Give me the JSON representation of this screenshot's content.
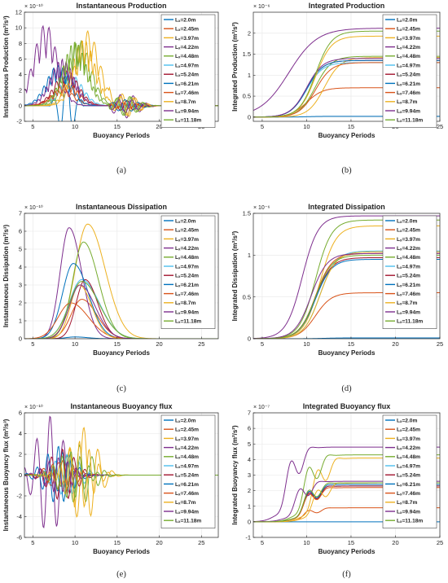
{
  "legend_labels": [
    "Lₓ=2.0m",
    "Lₓ=2.45m",
    "Lₓ=3.97m",
    "Lₓ=4.22m",
    "Lₓ=4.48m",
    "Lₓ=4.97m",
    "Lₓ=5.24m",
    "Lₓ=6.21m",
    "Lₓ=7.46m",
    "Lₓ=8.7m",
    "Lₓ=9.94m",
    "Lₓ=11.18m"
  ],
  "series_colors": [
    "#0072BD",
    "#D95319",
    "#EDB120",
    "#7E2F8E",
    "#77AC30",
    "#4DBEEE",
    "#A2142F",
    "#0072BD",
    "#D95319",
    "#EDB120",
    "#7E2F8E",
    "#77AC30"
  ],
  "chart_data": [
    {
      "type": "line",
      "label": "(a)",
      "title": "Instantaneous Production",
      "xlabel": "Buoyancy Periods",
      "ylabel": "Instantaneous Production (m²/s³)",
      "exponent": "× 10⁻¹⁰",
      "xlim": [
        4,
        27
      ],
      "ylim": [
        -2,
        12
      ],
      "xticks": [
        5,
        10,
        15,
        20,
        25
      ],
      "yticks": [
        -2,
        0,
        2,
        4,
        6,
        8,
        10,
        12
      ],
      "grid": true,
      "series_kind": "spiky",
      "peaks": [
        [
          9.0,
          4.3
        ],
        [
          8.5,
          2.2
        ],
        [
          11.5,
          9.6
        ],
        [
          6.5,
          10.5
        ],
        [
          10.5,
          8.4
        ],
        [
          9.5,
          4.0
        ],
        [
          9.0,
          4.5
        ],
        [
          8.0,
          5.2
        ],
        [
          9.0,
          2.9
        ],
        [
          11.0,
          8.5
        ],
        [
          8.5,
          6.0
        ],
        [
          10.0,
          8.3
        ]
      ]
    },
    {
      "type": "line",
      "label": "(b)",
      "title": "Integrated Production",
      "xlabel": "Buoyancy Periods",
      "ylabel": "Integrated Production (m²/s²)",
      "exponent": "× 10⁻⁶",
      "xlim": [
        4,
        25
      ],
      "ylim": [
        -0.1,
        2.5
      ],
      "xticks": [
        5,
        10,
        15,
        20,
        25
      ],
      "yticks": [
        0,
        0.5,
        1,
        1.5,
        2
      ],
      "grid": true,
      "series_kind": "cumulative",
      "finals": [
        [
          10,
          0.02
        ],
        [
          10,
          0.7
        ],
        [
          12,
          1.42
        ],
        [
          8,
          2.12
        ],
        [
          11,
          1.45
        ],
        [
          10,
          1.3
        ],
        [
          10,
          1.35
        ],
        [
          10,
          1.35
        ],
        [
          11,
          1.3
        ],
        [
          11,
          1.93
        ],
        [
          10,
          1.4
        ],
        [
          11,
          2.05
        ]
      ]
    },
    {
      "type": "line",
      "label": "(c)",
      "title": "Instantaneous Dissipation",
      "xlabel": "Buoyancy Periods",
      "ylabel": "Instantaneous Dissipation (m²/s³)",
      "exponent": "× 10⁻¹⁰",
      "xlim": [
        4,
        27
      ],
      "ylim": [
        0,
        7
      ],
      "xticks": [
        5,
        10,
        15,
        20,
        25
      ],
      "yticks": [
        0,
        1,
        2,
        3,
        4,
        5,
        6,
        7
      ],
      "grid": true,
      "series_kind": "smooth",
      "peaks": [
        [
          10.0,
          0.1
        ],
        [
          10.8,
          2.2
        ],
        [
          11.5,
          6.4
        ],
        [
          9.3,
          6.2
        ],
        [
          11.0,
          5.4
        ],
        [
          10.8,
          3.3
        ],
        [
          11.2,
          3.3
        ],
        [
          9.8,
          4.2
        ],
        [
          9.5,
          2.0
        ],
        [
          10.5,
          3.0
        ],
        [
          10.6,
          3.0
        ],
        [
          10.8,
          3.2
        ]
      ]
    },
    {
      "type": "line",
      "label": "(d)",
      "title": "Integrated Dissipation",
      "xlabel": "Buoyancy Periods",
      "ylabel": "Integrated Dissipation (m²/s²)",
      "exponent": "× 10⁻⁶",
      "xlim": [
        4,
        25
      ],
      "ylim": [
        0,
        1.5
      ],
      "xticks": [
        5,
        10,
        15,
        20,
        25
      ],
      "yticks": [
        0,
        0.5,
        1,
        1.5
      ],
      "grid": true,
      "series_kind": "cumulative",
      "finals": [
        [
          12,
          0.01
        ],
        [
          11,
          0.55
        ],
        [
          11.5,
          1.35
        ],
        [
          9.5,
          1.47
        ],
        [
          11,
          1.42
        ],
        [
          11.5,
          1.05
        ],
        [
          11,
          0.97
        ],
        [
          11,
          0.95
        ],
        [
          11,
          1.02
        ],
        [
          11.5,
          1.04
        ],
        [
          10.5,
          1.02
        ],
        [
          11,
          1.0
        ]
      ]
    },
    {
      "type": "line",
      "label": "(e)",
      "title": "Instantaneous Buoyancy flux",
      "xlabel": "Buoyancy Periods",
      "ylabel": "Instantaneous Buoyancy flux (m²/s³)",
      "exponent": "× 10⁻¹⁰",
      "xlim": [
        4,
        27
      ],
      "ylim": [
        -6,
        6
      ],
      "xticks": [
        5,
        10,
        15,
        20,
        25
      ],
      "yticks": [
        -6,
        -4,
        -2,
        0,
        2,
        4,
        6
      ],
      "grid": true,
      "series_kind": "oscillating",
      "peaks": [
        [
          8.5,
          2.2
        ],
        [
          8.0,
          1.2
        ],
        [
          11.0,
          4.6
        ],
        [
          7.0,
          5.7
        ],
        [
          10.5,
          2.9
        ],
        [
          9.0,
          2.0
        ],
        [
          8.5,
          2.5
        ],
        [
          8.0,
          2.8
        ],
        [
          8.5,
          1.4
        ],
        [
          10.5,
          3.3
        ],
        [
          8.0,
          1.7
        ],
        [
          9.5,
          2.3
        ]
      ]
    },
    {
      "type": "line",
      "label": "(f)",
      "title": "Integrated Buoyancy flux",
      "xlabel": "Buoyancy Periods",
      "ylabel": "Integrated Buoyancy flux (m²/s²)",
      "exponent": "× 10⁻⁷",
      "xlim": [
        4,
        25
      ],
      "ylim": [
        -1,
        7
      ],
      "xticks": [
        5,
        10,
        15,
        20,
        25
      ],
      "yticks": [
        -1,
        0,
        1,
        2,
        3,
        4,
        5,
        6,
        7
      ],
      "grid": true,
      "series_kind": "cumulative_overshoot",
      "finals": [
        [
          10,
          0.0
        ],
        [
          10,
          0.9
        ],
        [
          11,
          4.1
        ],
        [
          8,
          4.8
        ],
        [
          10,
          4.3
        ],
        [
          10,
          2.3
        ],
        [
          10,
          2.3
        ],
        [
          10,
          2.4
        ],
        [
          10,
          2.2
        ],
        [
          11,
          2.5
        ],
        [
          9,
          2.6
        ],
        [
          10,
          2.5
        ]
      ]
    }
  ]
}
